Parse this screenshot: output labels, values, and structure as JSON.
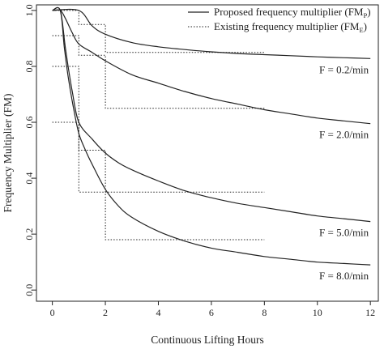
{
  "chart_data": {
    "type": "line",
    "xlabel": "Continuous Lifting Hours",
    "ylabel": "Frequency Multiplier (FM)",
    "xlim": [
      -0.6,
      12.3
    ],
    "ylim": [
      -0.04,
      1.02
    ],
    "xticks": [
      "0",
      "2",
      "4",
      "6",
      "8",
      "10",
      "12"
    ],
    "yticks": [
      "0.0",
      "0.2",
      "0.4",
      "0.6",
      "0.8",
      "1.0"
    ],
    "grid": false,
    "legend": {
      "position": "top-right",
      "entries": [
        {
          "style": "solid",
          "label": "Proposed frequency multiplier (FM",
          "sub": "P",
          "suffix": ")"
        },
        {
          "style": "dotted",
          "label": "Existing frequency multiplier (FM",
          "sub": "E",
          "suffix": ")"
        }
      ]
    },
    "series": [
      {
        "label": "F = 0.2/min",
        "proposed": {
          "x": [
            0,
            1,
            1.5,
            2,
            3,
            4,
            5,
            6,
            7,
            8,
            9,
            10,
            11,
            12
          ],
          "y": [
            1.0,
            1.0,
            0.945,
            0.915,
            0.885,
            0.87,
            0.86,
            0.852,
            0.846,
            0.842,
            0.838,
            0.834,
            0.831,
            0.828
          ]
        },
        "existing": {
          "x": [
            0,
            1,
            1,
            2,
            2,
            8
          ],
          "y": [
            1.0,
            1.0,
            0.95,
            0.95,
            0.85,
            0.85
          ]
        }
      },
      {
        "label": "F = 2.0/min",
        "proposed": {
          "x": [
            0,
            0.3,
            0.5,
            0.75,
            1,
            1.5,
            2,
            3,
            4,
            5,
            6,
            7,
            8,
            9,
            10,
            11,
            12
          ],
          "y": [
            1.0,
            1.0,
            0.97,
            0.92,
            0.88,
            0.85,
            0.82,
            0.77,
            0.74,
            0.71,
            0.685,
            0.665,
            0.645,
            0.63,
            0.615,
            0.605,
            0.595
          ]
        },
        "existing": {
          "x": [
            0,
            1,
            1,
            2,
            2,
            8
          ],
          "y": [
            0.91,
            0.91,
            0.84,
            0.84,
            0.65,
            0.65
          ]
        }
      },
      {
        "label": "F = 5.0/min",
        "proposed": {
          "x": [
            0,
            0.3,
            0.5,
            0.75,
            1,
            1.5,
            2,
            2.5,
            3,
            4,
            5,
            6,
            7,
            8,
            9,
            10,
            11,
            12
          ],
          "y": [
            1.0,
            1.0,
            0.86,
            0.71,
            0.6,
            0.54,
            0.49,
            0.455,
            0.43,
            0.39,
            0.355,
            0.33,
            0.31,
            0.295,
            0.28,
            0.265,
            0.255,
            0.245
          ]
        },
        "existing": {
          "x": [
            0,
            1,
            1,
            8
          ],
          "y": [
            0.8,
            0.8,
            0.35,
            0.35
          ]
        }
      },
      {
        "label": "F = 8.0/min",
        "proposed": {
          "x": [
            0,
            0.3,
            0.45,
            0.6,
            0.8,
            1,
            1.25,
            1.5,
            2,
            2.5,
            3,
            4,
            5,
            6,
            7,
            8,
            9,
            10,
            11,
            12
          ],
          "y": [
            1.0,
            1.0,
            0.87,
            0.76,
            0.65,
            0.56,
            0.5,
            0.45,
            0.36,
            0.3,
            0.26,
            0.21,
            0.175,
            0.15,
            0.135,
            0.12,
            0.11,
            0.1,
            0.095,
            0.09
          ]
        },
        "existing": {
          "x": [
            0,
            1,
            1,
            2,
            2,
            8
          ],
          "y": [
            0.6,
            0.6,
            0.5,
            0.5,
            0.18,
            0.18
          ]
        }
      }
    ]
  }
}
